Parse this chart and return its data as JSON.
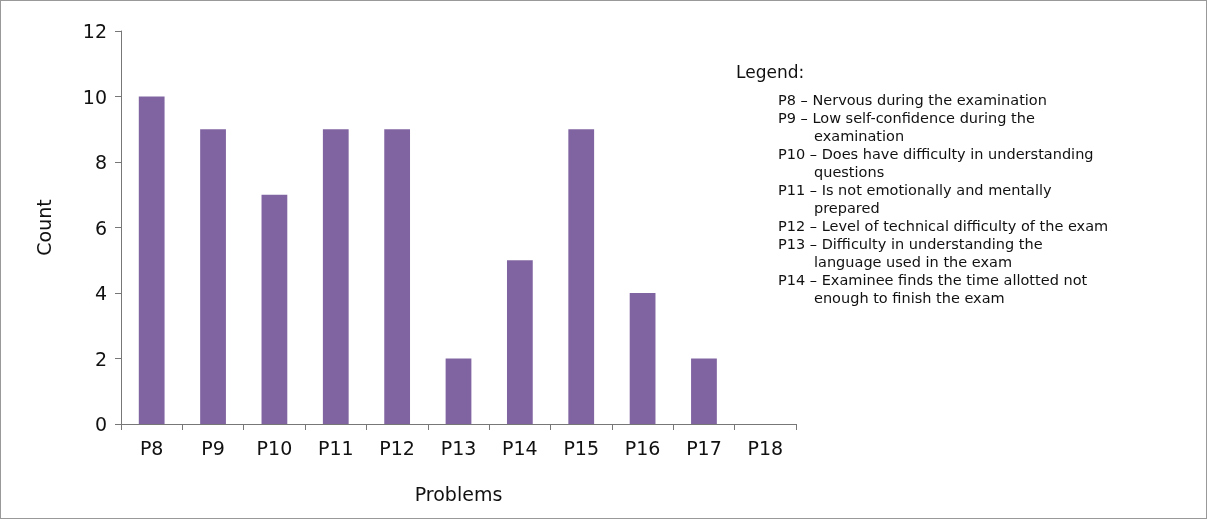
{
  "chart_data": {
    "type": "bar",
    "xlabel": "Problems",
    "ylabel": "Count",
    "categories": [
      "P8",
      "P9",
      "P10",
      "P11",
      "P12",
      "P13",
      "P14",
      "P15",
      "P16",
      "P17",
      "P18"
    ],
    "values": [
      10,
      9,
      7,
      9,
      9,
      2,
      5,
      9,
      4,
      2,
      0
    ],
    "color": "#8064a2",
    "ylim": [
      0,
      12
    ],
    "yticks": [
      0,
      2,
      4,
      6,
      8,
      10,
      12
    ],
    "grid": false,
    "annotations": [
      "Legend:",
      "P8 – Nervous during the examination",
      "P9 – Low self-confidence during the examination",
      "P10 – Does have difficulty in understanding questions",
      "P11 – Is not emotionally and mentally prepared",
      "P12 – Level of technical difficulty of the exam",
      "P13 – Difficulty in understanding the language used in the exam",
      "P14 – Examinee finds the time allotted not enough to finish the exam"
    ]
  }
}
